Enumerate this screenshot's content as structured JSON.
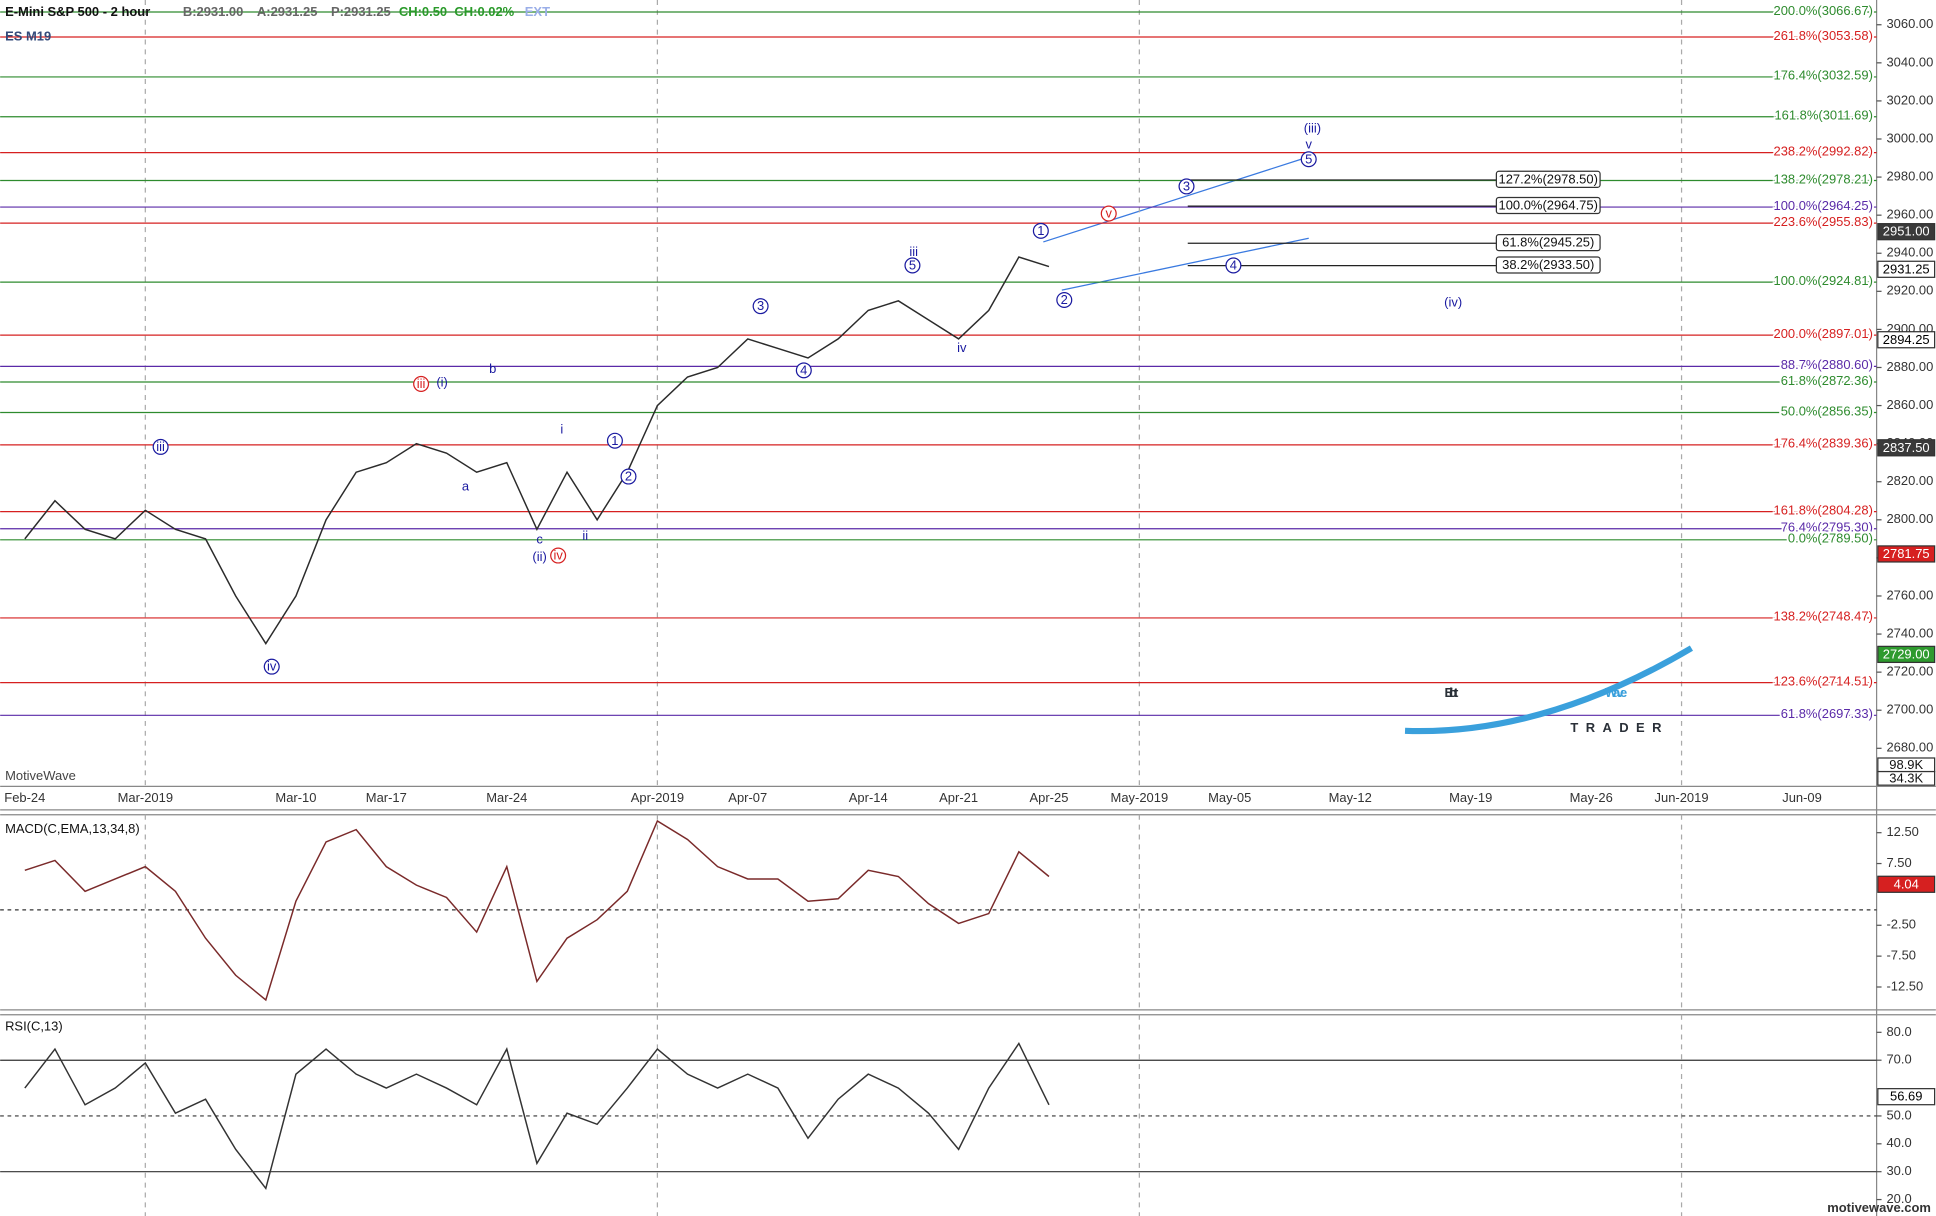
{
  "chart_data": [
    {
      "type": "line",
      "title": "E-Mini S&P 500 - 2 hour",
      "subtitle": "ES M19",
      "quote": [
        {
          "text": "B:2931.00",
          "color": "#666666"
        },
        {
          "text": "A:2931.25",
          "color": "#666666"
        },
        {
          "text": "P:2931.25",
          "color": "#666666"
        },
        {
          "text": "CH:0.50",
          "color": "#2a9a2a"
        },
        {
          "text": "CH:0.02%",
          "color": "#2a9a2a"
        },
        {
          "text": "EXT",
          "color": "#9aaee8"
        }
      ],
      "watermark": "MotiveWave",
      "footer": "motivewave.com",
      "logo": [
        "Elliott",
        "Wave",
        "TRADER"
      ],
      "categories": [
        "Feb-24",
        null,
        null,
        null,
        "Mar-2019",
        null,
        null,
        null,
        null,
        "Mar-10",
        null,
        null,
        "Mar-17",
        null,
        null,
        null,
        "Mar-24",
        null,
        null,
        null,
        null,
        "Apr-2019",
        null,
        null,
        "Apr-07",
        null,
        null,
        null,
        "Apr-14",
        null,
        null,
        "Apr-21",
        null,
        null,
        "Apr-25",
        null,
        null,
        "May-2019",
        null,
        null,
        "May-05",
        null,
        null,
        null,
        "May-12",
        null,
        null,
        null,
        "May-19",
        null,
        null,
        null,
        "May-26",
        null,
        null,
        "Jun-2019",
        null,
        null,
        null,
        "Jun-09",
        null
      ],
      "values": [
        2790,
        2810,
        2795,
        2790,
        2805,
        2795,
        2790,
        2760,
        2735,
        2760,
        2800,
        2825,
        2830,
        2840,
        2835,
        2825,
        2830,
        2795,
        2825,
        2800,
        2825,
        2860,
        2875,
        2880,
        2895,
        2890,
        2885,
        2895,
        2910,
        2915,
        2905,
        2895,
        2910,
        2938,
        2933,
        null,
        null,
        null,
        null,
        null,
        null,
        null,
        null,
        null,
        null,
        null,
        null,
        null,
        null,
        null,
        null,
        null,
        null,
        null,
        null,
        null,
        null,
        null,
        null,
        null,
        null
      ],
      "color": "#2b2b2b",
      "ylim": [
        2660,
        3073
      ],
      "yticks": [
        {
          "value": 2680,
          "label": "2680.00"
        },
        {
          "value": 2700,
          "label": "2700.00"
        },
        {
          "value": 2720,
          "label": "2720.00"
        },
        {
          "value": 2740,
          "label": "2740.00"
        },
        {
          "value": 2760,
          "label": "2760.00"
        },
        {
          "value": 2780,
          "label": "2780.00"
        },
        {
          "value": 2800,
          "label": "2800.00"
        },
        {
          "value": 2820,
          "label": "2820.00"
        },
        {
          "value": 2840,
          "label": "2840.00"
        },
        {
          "value": 2860,
          "label": "2860.00"
        },
        {
          "value": 2880,
          "label": "2880.00"
        },
        {
          "value": 2900,
          "label": "2900.00"
        },
        {
          "value": 2920,
          "label": "2920.00"
        },
        {
          "value": 2940,
          "label": "2940.00"
        },
        {
          "value": 2960,
          "label": "2960.00"
        },
        {
          "value": 2980,
          "label": "2980.00"
        },
        {
          "value": 3000,
          "label": "3000.00"
        },
        {
          "value": 3020,
          "label": "3020.00"
        },
        {
          "value": 3040,
          "label": "3040.00"
        },
        {
          "value": 3060,
          "label": "3060.00"
        }
      ],
      "fib_levels": [
        {
          "value": 3066.67,
          "label": "200.0%(3066.67)",
          "color": "#2e8b2e"
        },
        {
          "value": 3053.58,
          "label": "261.8%(3053.58)",
          "color": "#d62020"
        },
        {
          "value": 3032.59,
          "label": "176.4%(3032.59)",
          "color": "#2e8b2e"
        },
        {
          "value": 3011.69,
          "label": "161.8%(3011.69)",
          "color": "#2e8b2e"
        },
        {
          "value": 2992.82,
          "label": "238.2%(2992.82)",
          "color": "#d62020"
        },
        {
          "value": 2978.21,
          "label": "138.2%(2978.21)",
          "color": "#2e8b2e"
        },
        {
          "value": 2964.25,
          "label": "100.0%(2964.25)",
          "color": "#5a2aa8"
        },
        {
          "value": 2955.83,
          "label": "223.6%(2955.83)",
          "color": "#d62020"
        },
        {
          "value": 2924.81,
          "label": "100.0%(2924.81)",
          "color": "#2e8b2e"
        },
        {
          "value": 2897.01,
          "label": "200.0%(2897.01)",
          "color": "#d62020"
        },
        {
          "value": 2880.6,
          "label": "88.7%(2880.60)",
          "color": "#5a2aa8"
        },
        {
          "value": 2872.36,
          "label": "61.8%(2872.36)",
          "color": "#2e8b2e"
        },
        {
          "value": 2856.35,
          "label": "50.0%(2856.35)",
          "color": "#2e8b2e"
        },
        {
          "value": 2839.36,
          "label": "176.4%(2839.36)",
          "color": "#d62020"
        },
        {
          "value": 2804.28,
          "label": "161.8%(2804.28)",
          "color": "#d62020"
        },
        {
          "value": 2795.3,
          "label": "76.4%(2795.30)",
          "color": "#5a2aa8"
        },
        {
          "value": 2789.5,
          "label": "0.0%(2789.50)",
          "color": "#2e8b2e"
        },
        {
          "value": 2748.47,
          "label": "138.2%(2748.47)",
          "color": "#d62020"
        },
        {
          "value": 2714.51,
          "label": "123.6%(2714.51)",
          "color": "#d62020"
        },
        {
          "value": 2697.33,
          "label": "61.8%(2697.33)",
          "color": "#5a2aa8"
        }
      ],
      "projections": [
        {
          "value": 2978.5,
          "label": "127.2%(2978.50)"
        },
        {
          "value": 2964.75,
          "label": "100.0%(2964.75)"
        },
        {
          "value": 2945.25,
          "label": "61.8%(2945.25)"
        },
        {
          "value": 2933.5,
          "label": "38.2%(2933.50)"
        }
      ],
      "price_markers": [
        {
          "value": 2951.0,
          "label": "2951.00",
          "color": "#3a3a3a",
          "text_color": "#ffffff"
        },
        {
          "value": 2931.25,
          "label": "2931.25",
          "color": "#ffffff",
          "text_color": "#000000"
        },
        {
          "value": 2894.25,
          "label": "2894.25",
          "color": "#ffffff",
          "text_color": "#000000"
        },
        {
          "value": 2837.5,
          "label": "2837.50",
          "color": "#3a3a3a",
          "text_color": "#ffffff"
        },
        {
          "value": 2781.75,
          "label": "2781.75",
          "color": "#d62020",
          "text_color": "#ffffff"
        },
        {
          "value": 2729.0,
          "label": "2729.00",
          "color": "#2e9a2e",
          "text_color": "#ffffff"
        }
      ],
      "volume_labels": [
        {
          "value": 98900,
          "label": "98.9K"
        },
        {
          "value": 34300,
          "label": "34.3K"
        }
      ],
      "annotations": [
        {
          "text": "(iii)",
          "color": "#1a1aa0"
        },
        {
          "text": "v",
          "color": "#1a1aa0"
        },
        {
          "text": "5",
          "color": "#1a1aa0",
          "circled": true
        },
        {
          "text": "3",
          "color": "#1a1aa0",
          "circled": true
        },
        {
          "text": "v",
          "color": "#d62020",
          "circled": true
        },
        {
          "text": "1",
          "color": "#1a1aa0",
          "circled": true
        },
        {
          "text": "2",
          "color": "#1a1aa0",
          "circled": true
        },
        {
          "text": "4",
          "color": "#1a1aa0",
          "circled": true
        },
        {
          "text": "(iv)",
          "color": "#1a1aa0"
        },
        {
          "text": "iii",
          "color": "#1a1aa0"
        },
        {
          "text": "5",
          "color": "#1a1aa0",
          "circled": true
        },
        {
          "text": "iv",
          "color": "#1a1aa0"
        },
        {
          "text": "3",
          "color": "#1a1aa0",
          "circled": true
        },
        {
          "text": "4",
          "color": "#1a1aa0",
          "circled": true
        },
        {
          "text": "iii",
          "color": "#d62020",
          "circled": true
        },
        {
          "text": "(i)",
          "color": "#1a1aa0"
        },
        {
          "text": "b",
          "color": "#1a1aa0"
        },
        {
          "text": "a",
          "color": "#1a1aa0"
        },
        {
          "text": "i",
          "color": "#1a1aa0"
        },
        {
          "text": "1",
          "color": "#1a1aa0",
          "circled": true
        },
        {
          "text": "2",
          "color": "#1a1aa0",
          "circled": true
        },
        {
          "text": "ii",
          "color": "#1a1aa0"
        },
        {
          "text": "c",
          "color": "#1a1aa0"
        },
        {
          "text": "(ii)",
          "color": "#1a1aa0"
        },
        {
          "text": "iv",
          "color": "#d62020",
          "circled": true
        },
        {
          "text": "iii",
          "color": "#1a1aa0",
          "circled": true
        },
        {
          "text": "iv",
          "color": "#1a1aa0",
          "circled": true
        }
      ]
    },
    {
      "type": "line",
      "title": "MACD(C,EMA,13,34,8)",
      "values": [
        6.4,
        8,
        3,
        5,
        7,
        3,
        -4.6,
        -10.6,
        -14.6,
        1.4,
        11,
        13,
        7,
        4,
        2,
        -3.6,
        7,
        -11.6,
        -4.6,
        -1.6,
        3,
        14.4,
        11.4,
        7,
        5,
        5,
        1.4,
        1.8,
        6.4,
        5.4,
        1,
        -2.2,
        -0.6,
        9.4,
        5.4
      ],
      "color": "#7a2a2a",
      "ylim": [
        -16.2,
        15
      ],
      "yticks": [
        {
          "value": 12.5,
          "label": "12.50"
        },
        {
          "value": 7.5,
          "label": "7.50"
        },
        {
          "value": -2.5,
          "label": "-2.50"
        },
        {
          "value": -7.5,
          "label": "-7.50"
        },
        {
          "value": -12.5,
          "label": "-12.50"
        }
      ],
      "dashed_levels": [
        0
      ],
      "price_markers": [
        {
          "value": 4.04,
          "label": "4.04",
          "color": "#d62020",
          "text_color": "#ffffff"
        }
      ]
    },
    {
      "type": "line",
      "title": "RSI(C,13)",
      "values": [
        60,
        74,
        54,
        60,
        69,
        51,
        56,
        38,
        24,
        65,
        74,
        65,
        60,
        65,
        60,
        54,
        74,
        33,
        51,
        47,
        60,
        74,
        65,
        60,
        65,
        60,
        42,
        56,
        65,
        60,
        51,
        38,
        60,
        76,
        54
      ],
      "color": "#333333",
      "ylim": [
        14.1,
        86.3
      ],
      "yticks": [
        {
          "value": 80,
          "label": "80.0"
        },
        {
          "value": 70,
          "label": "70.0"
        },
        {
          "value": 50,
          "label": "50.0"
        },
        {
          "value": 40,
          "label": "40.0"
        },
        {
          "value": 30,
          "label": "30.0"
        },
        {
          "value": 20,
          "label": "20.0"
        }
      ],
      "solid_levels": [
        70,
        30
      ],
      "dashed_levels": [
        50
      ],
      "price_markers": [
        {
          "value": 56.69,
          "label": "56.69",
          "color": "#ffffff",
          "text_color": "#000000"
        }
      ]
    }
  ]
}
